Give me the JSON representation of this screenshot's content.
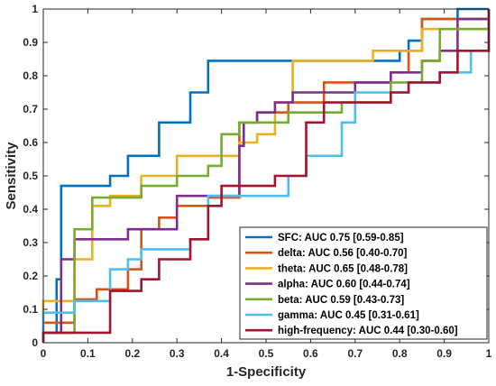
{
  "chart_data": {
    "type": "line",
    "xlabel": "1-Specificity",
    "ylabel": "Sensitivity",
    "xlim": [
      0,
      1
    ],
    "ylim": [
      0,
      1
    ],
    "xticks": [
      0,
      0.1,
      0.2,
      0.3,
      0.4,
      0.5,
      0.6,
      0.7,
      0.8,
      0.9,
      1
    ],
    "yticks": [
      0,
      0.1,
      0.2,
      0.3,
      0.4,
      0.5,
      0.6,
      0.7,
      0.8,
      0.9,
      1
    ],
    "xtick_labels": [
      "0",
      "0.1",
      "0.2",
      "0.3",
      "0.4",
      "0.5",
      "0.6",
      "0.7",
      "0.8",
      "0.9",
      "1"
    ],
    "ytick_labels": [
      "0",
      "0.1",
      "0.2",
      "0.3",
      "0.4",
      "0.5",
      "0.6",
      "0.7",
      "0.8",
      "0.9",
      "1"
    ],
    "grid": false,
    "legend_position": "bottom-right",
    "series": [
      {
        "name": "SFC: AUC 0.75 [0.59-0.85]",
        "color": "#0072BD",
        "points": [
          [
            0,
            0
          ],
          [
            0,
            0.03
          ],
          [
            0.03,
            0.03
          ],
          [
            0.03,
            0.19
          ],
          [
            0.04,
            0.19
          ],
          [
            0.04,
            0.47
          ],
          [
            0.15,
            0.47
          ],
          [
            0.15,
            0.5
          ],
          [
            0.19,
            0.5
          ],
          [
            0.19,
            0.56
          ],
          [
            0.26,
            0.56
          ],
          [
            0.26,
            0.66
          ],
          [
            0.33,
            0.66
          ],
          [
            0.33,
            0.75
          ],
          [
            0.37,
            0.75
          ],
          [
            0.37,
            0.845
          ],
          [
            0.55,
            0.845
          ],
          [
            0.55,
            0.845
          ],
          [
            0.8,
            0.845
          ],
          [
            0.8,
            0.875
          ],
          [
            0.82,
            0.875
          ],
          [
            0.82,
            0.905
          ],
          [
            0.85,
            0.905
          ],
          [
            0.85,
            0.97
          ],
          [
            0.93,
            0.97
          ],
          [
            0.93,
            1
          ],
          [
            1,
            1
          ]
        ]
      },
      {
        "name": "delta: AUC 0.56 [0.40-0.70]",
        "color": "#D95319",
        "points": [
          [
            0,
            0
          ],
          [
            0,
            0.06
          ],
          [
            0.07,
            0.06
          ],
          [
            0.07,
            0.13
          ],
          [
            0.12,
            0.13
          ],
          [
            0.12,
            0.16
          ],
          [
            0.19,
            0.16
          ],
          [
            0.19,
            0.22
          ],
          [
            0.22,
            0.22
          ],
          [
            0.22,
            0.34
          ],
          [
            0.26,
            0.34
          ],
          [
            0.26,
            0.375
          ],
          [
            0.3,
            0.375
          ],
          [
            0.3,
            0.41
          ],
          [
            0.37,
            0.41
          ],
          [
            0.37,
            0.435
          ],
          [
            0.44,
            0.435
          ],
          [
            0.44,
            0.66
          ],
          [
            0.48,
            0.66
          ],
          [
            0.48,
            0.69
          ],
          [
            0.55,
            0.69
          ],
          [
            0.55,
            0.72
          ],
          [
            0.63,
            0.72
          ],
          [
            0.63,
            0.78
          ],
          [
            0.78,
            0.78
          ],
          [
            0.78,
            0.81
          ],
          [
            0.82,
            0.81
          ],
          [
            0.82,
            0.875
          ],
          [
            0.85,
            0.875
          ],
          [
            0.85,
            0.97
          ],
          [
            1,
            0.97
          ],
          [
            1,
            1
          ]
        ]
      },
      {
        "name": "theta: AUC 0.65 [0.48-0.78]",
        "color": "#EDB120",
        "points": [
          [
            0,
            0
          ],
          [
            0,
            0.125
          ],
          [
            0.07,
            0.125
          ],
          [
            0.07,
            0.25
          ],
          [
            0.11,
            0.25
          ],
          [
            0.11,
            0.41
          ],
          [
            0.15,
            0.41
          ],
          [
            0.15,
            0.44
          ],
          [
            0.22,
            0.44
          ],
          [
            0.22,
            0.5
          ],
          [
            0.3,
            0.5
          ],
          [
            0.3,
            0.56
          ],
          [
            0.44,
            0.56
          ],
          [
            0.44,
            0.6
          ],
          [
            0.48,
            0.6
          ],
          [
            0.48,
            0.625
          ],
          [
            0.52,
            0.625
          ],
          [
            0.52,
            0.72
          ],
          [
            0.56,
            0.72
          ],
          [
            0.56,
            0.845
          ],
          [
            0.74,
            0.845
          ],
          [
            0.74,
            0.875
          ],
          [
            0.85,
            0.875
          ],
          [
            0.85,
            0.94
          ],
          [
            1,
            0.94
          ],
          [
            1,
            1
          ]
        ]
      },
      {
        "name": "alpha: AUC 0.60 [0.44-0.74]",
        "color": "#7E2F8E",
        "points": [
          [
            0,
            0
          ],
          [
            0,
            0.03
          ],
          [
            0.04,
            0.03
          ],
          [
            0.04,
            0.25
          ],
          [
            0.07,
            0.25
          ],
          [
            0.07,
            0.31
          ],
          [
            0.19,
            0.31
          ],
          [
            0.19,
            0.34
          ],
          [
            0.3,
            0.34
          ],
          [
            0.3,
            0.44
          ],
          [
            0.44,
            0.44
          ],
          [
            0.44,
            0.59
          ],
          [
            0.45,
            0.59
          ],
          [
            0.45,
            0.66
          ],
          [
            0.48,
            0.66
          ],
          [
            0.48,
            0.69
          ],
          [
            0.52,
            0.69
          ],
          [
            0.52,
            0.72
          ],
          [
            0.56,
            0.72
          ],
          [
            0.56,
            0.75
          ],
          [
            0.7,
            0.75
          ],
          [
            0.7,
            0.78
          ],
          [
            0.78,
            0.78
          ],
          [
            0.78,
            0.81
          ],
          [
            0.85,
            0.81
          ],
          [
            0.85,
            0.845
          ],
          [
            0.89,
            0.845
          ],
          [
            0.89,
            0.875
          ],
          [
            0.93,
            0.875
          ],
          [
            0.93,
            0.97
          ],
          [
            1,
            0.97
          ],
          [
            1,
            1
          ]
        ]
      },
      {
        "name": "beta: AUC 0.59 [0.43-0.73]",
        "color": "#77AC30",
        "points": [
          [
            0,
            0
          ],
          [
            0,
            0.03
          ],
          [
            0.07,
            0.03
          ],
          [
            0.07,
            0.34
          ],
          [
            0.11,
            0.34
          ],
          [
            0.11,
            0.435
          ],
          [
            0.22,
            0.435
          ],
          [
            0.22,
            0.47
          ],
          [
            0.3,
            0.47
          ],
          [
            0.3,
            0.5
          ],
          [
            0.37,
            0.5
          ],
          [
            0.37,
            0.53
          ],
          [
            0.4,
            0.53
          ],
          [
            0.4,
            0.625
          ],
          [
            0.44,
            0.625
          ],
          [
            0.44,
            0.66
          ],
          [
            0.55,
            0.66
          ],
          [
            0.55,
            0.69
          ],
          [
            0.67,
            0.69
          ],
          [
            0.67,
            0.72
          ],
          [
            0.78,
            0.72
          ],
          [
            0.78,
            0.78
          ],
          [
            0.85,
            0.78
          ],
          [
            0.85,
            0.845
          ],
          [
            0.89,
            0.845
          ],
          [
            0.89,
            0.94
          ],
          [
            1,
            0.94
          ],
          [
            1,
            1
          ]
        ]
      },
      {
        "name": "gamma: AUC 0.45 [0.31-0.61]",
        "color": "#4DBEEE",
        "points": [
          [
            0,
            0
          ],
          [
            0,
            0.09
          ],
          [
            0.07,
            0.09
          ],
          [
            0.07,
            0.125
          ],
          [
            0.15,
            0.125
          ],
          [
            0.15,
            0.22
          ],
          [
            0.19,
            0.22
          ],
          [
            0.19,
            0.25
          ],
          [
            0.22,
            0.25
          ],
          [
            0.22,
            0.28
          ],
          [
            0.33,
            0.28
          ],
          [
            0.33,
            0.31
          ],
          [
            0.37,
            0.31
          ],
          [
            0.37,
            0.44
          ],
          [
            0.55,
            0.44
          ],
          [
            0.55,
            0.5
          ],
          [
            0.59,
            0.5
          ],
          [
            0.59,
            0.56
          ],
          [
            0.67,
            0.56
          ],
          [
            0.67,
            0.66
          ],
          [
            0.7,
            0.66
          ],
          [
            0.7,
            0.75
          ],
          [
            0.82,
            0.75
          ],
          [
            0.82,
            0.78
          ],
          [
            0.89,
            0.78
          ],
          [
            0.89,
            0.81
          ],
          [
            0.96,
            0.81
          ],
          [
            0.96,
            0.875
          ],
          [
            1,
            0.875
          ],
          [
            1,
            1
          ]
        ]
      },
      {
        "name": "high-frequency: AUC 0.44 [0.30-0.60]",
        "color": "#A2142F",
        "points": [
          [
            0,
            0
          ],
          [
            0,
            0.03
          ],
          [
            0.15,
            0.03
          ],
          [
            0.15,
            0.155
          ],
          [
            0.22,
            0.155
          ],
          [
            0.22,
            0.19
          ],
          [
            0.26,
            0.19
          ],
          [
            0.26,
            0.25
          ],
          [
            0.33,
            0.25
          ],
          [
            0.33,
            0.31
          ],
          [
            0.37,
            0.31
          ],
          [
            0.37,
            0.41
          ],
          [
            0.4,
            0.41
          ],
          [
            0.4,
            0.47
          ],
          [
            0.52,
            0.47
          ],
          [
            0.52,
            0.5
          ],
          [
            0.59,
            0.5
          ],
          [
            0.59,
            0.66
          ],
          [
            0.63,
            0.66
          ],
          [
            0.63,
            0.72
          ],
          [
            0.78,
            0.72
          ],
          [
            0.78,
            0.75
          ],
          [
            0.82,
            0.75
          ],
          [
            0.82,
            0.78
          ],
          [
            0.89,
            0.78
          ],
          [
            0.89,
            0.81
          ],
          [
            0.93,
            0.81
          ],
          [
            0.93,
            0.875
          ],
          [
            1,
            0.875
          ],
          [
            1,
            1
          ]
        ]
      }
    ]
  }
}
